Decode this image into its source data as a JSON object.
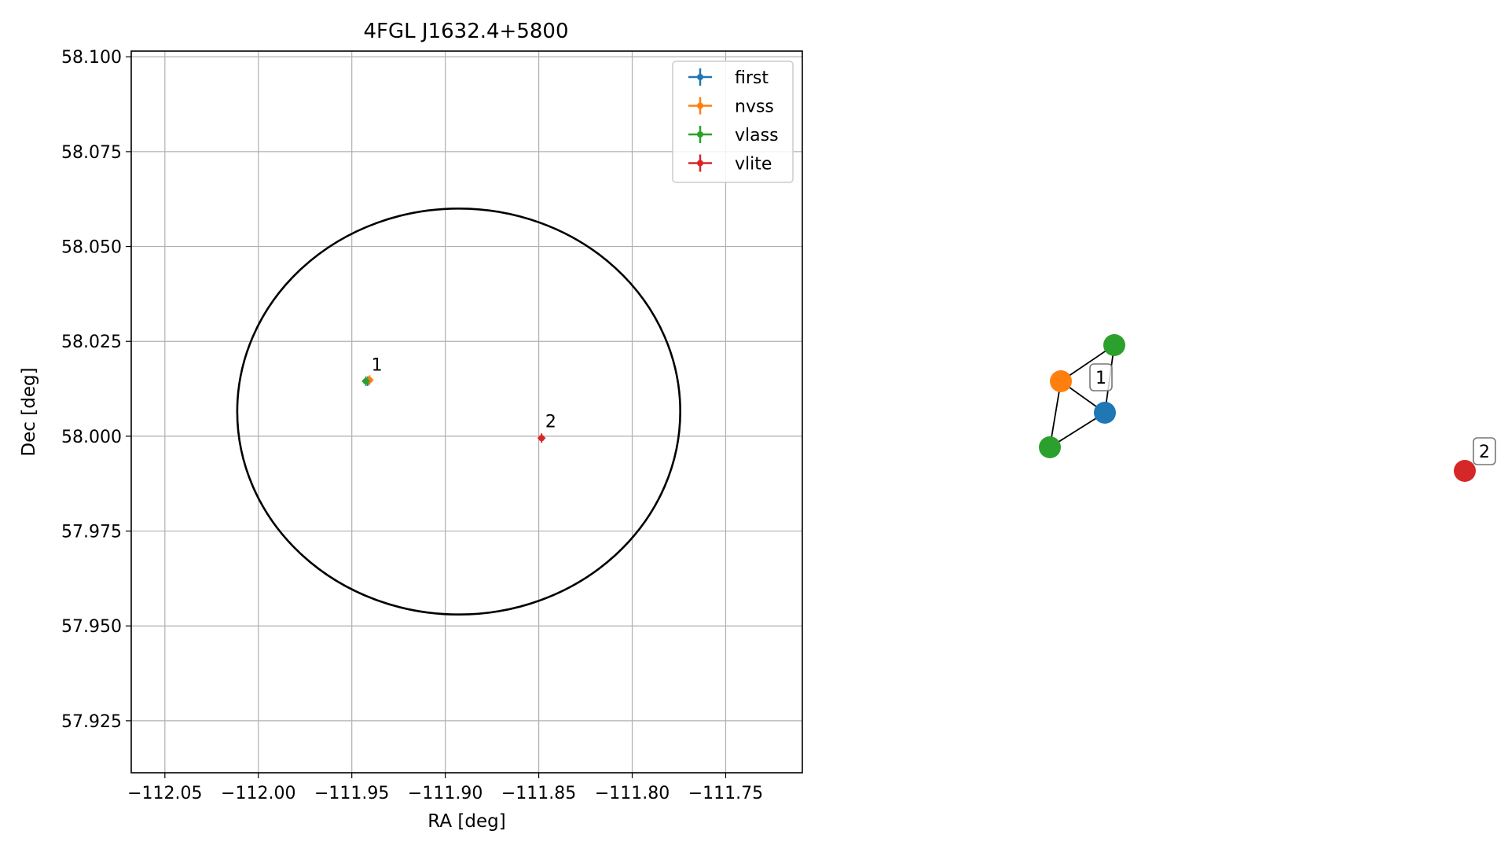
{
  "chart_data": [
    {
      "type": "scatter",
      "title": "4FGL J1632.4+5800",
      "xlabel": "RA [deg]",
      "ylabel": "Dec [deg]",
      "xlim": [
        -112.068,
        -111.709
      ],
      "ylim": [
        57.9113,
        58.1015
      ],
      "xticks": [
        -112.05,
        -112.0,
        -111.95,
        -111.9,
        -111.85,
        -111.8,
        -111.75
      ],
      "xtick_labels": [
        "−112.05",
        "−112.00",
        "−111.95",
        "−111.90",
        "−111.85",
        "−111.80",
        "−111.75"
      ],
      "yticks": [
        57.925,
        57.95,
        57.975,
        58.0,
        58.025,
        58.05,
        58.075,
        58.1
      ],
      "ytick_labels": [
        "57.925",
        "57.950",
        "57.975",
        "58.000",
        "58.025",
        "58.050",
        "58.075",
        "58.100"
      ],
      "grid": true,
      "legend_position": "top-right",
      "ellipse": {
        "center_ra": -111.8928,
        "center_dec": 58.0065,
        "semi_ra": 0.1185,
        "semi_dec": 0.0535,
        "color": "#000000"
      },
      "series": [
        {
          "name": "first",
          "color": "#1f77b4",
          "points": [
            {
              "ra": -111.9415,
              "dec": 58.0145
            }
          ]
        },
        {
          "name": "nvss",
          "color": "#ff7f0e",
          "points": [
            {
              "ra": -111.9405,
              "dec": 58.0148
            }
          ]
        },
        {
          "name": "vlass",
          "color": "#2ca02c",
          "points": [
            {
              "ra": -111.9425,
              "dec": 58.0145
            }
          ]
        },
        {
          "name": "vlite",
          "color": "#d62728",
          "points": [
            {
              "ra": -111.8485,
              "dec": 57.9995
            }
          ]
        }
      ],
      "annotations": [
        {
          "label": "1",
          "ra": -111.9395,
          "dec": 58.0165
        },
        {
          "label": "2",
          "ra": -111.8465,
          "dec": 58.0015
        }
      ]
    },
    {
      "type": "network",
      "nodes": [
        {
          "id": "a",
          "color": "#1f77b4"
        },
        {
          "id": "b",
          "color": "#ff7f0e"
        },
        {
          "id": "c",
          "color": "#2ca02c"
        },
        {
          "id": "d",
          "color": "#2ca02c"
        },
        {
          "id": "e",
          "color": "#d62728"
        }
      ],
      "edges": [
        [
          "a",
          "b"
        ],
        [
          "a",
          "c"
        ],
        [
          "a",
          "d"
        ],
        [
          "b",
          "c"
        ],
        [
          "b",
          "d"
        ]
      ],
      "labels": [
        {
          "text": "1",
          "near": "a"
        },
        {
          "text": "2",
          "near": "e"
        }
      ]
    }
  ]
}
